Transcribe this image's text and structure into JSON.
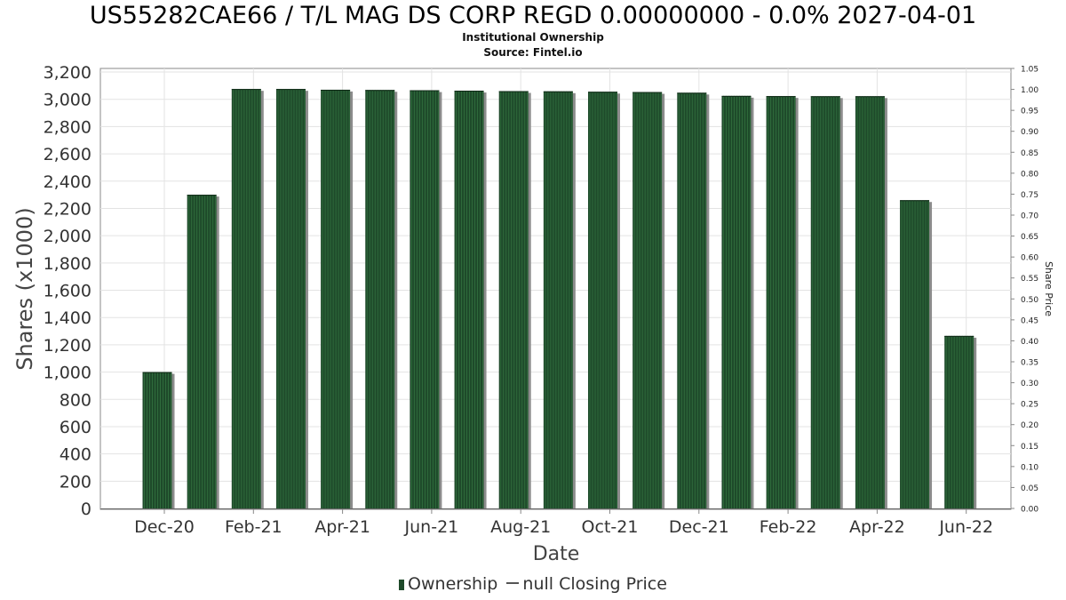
{
  "header": {
    "title": "US55282CAE66 / T/L MAG DS CORP REGD 0.00000000 - 0.0% 2027-04-01",
    "subtitle1": "Institutional Ownership",
    "subtitle2": "Source: Fintel.io"
  },
  "legend": {
    "items": [
      {
        "label": "Ownership",
        "color": "#1e4a2a",
        "kind": "bar"
      },
      {
        "label": "null Closing Price",
        "color": "#555555",
        "kind": "line"
      }
    ]
  },
  "colors": {
    "bar": "#1e4a2a",
    "bar_stripe": "#2f6b3c",
    "bar_shadow": "#8c8c8c",
    "grid": "#e3e3e3",
    "axis": "#888888"
  },
  "chart_data": {
    "type": "bar",
    "title": "US55282CAE66 / T/L MAG DS CORP REGD 0.00000000 - 0.0% 2027-04-01",
    "xlabel": "Date",
    "ylabel": "Shares (x1000)",
    "y2label": "Share Price",
    "ylim": [
      0,
      3200
    ],
    "y2lim": [
      0,
      1.05
    ],
    "yticks": [
      0,
      200,
      400,
      600,
      800,
      1000,
      1200,
      1400,
      1600,
      1800,
      2000,
      2200,
      2400,
      2600,
      2800,
      3000,
      3200
    ],
    "yticklabels": [
      "0",
      "200",
      "400",
      "600",
      "800",
      "1,000",
      "1,200",
      "1,400",
      "1,600",
      "1,800",
      "2,000",
      "2,200",
      "2,400",
      "2,600",
      "2,800",
      "3,000",
      "3,200"
    ],
    "y2ticks": [
      "0.00",
      "0.05",
      "0.10",
      "0.15",
      "0.20",
      "0.25",
      "0.30",
      "0.35",
      "0.40",
      "0.45",
      "0.50",
      "0.55",
      "0.60",
      "0.65",
      "0.70",
      "0.75",
      "0.80",
      "0.85",
      "0.90",
      "0.95",
      "1.00",
      "1.05"
    ],
    "xticklabels": [
      "Dec-20",
      "Feb-21",
      "Apr-21",
      "Jun-21",
      "Aug-21",
      "Oct-21",
      "Dec-21",
      "Feb-22",
      "Apr-22",
      "Jun-22"
    ],
    "grid": true,
    "legend_position": "bottom-center",
    "series": [
      {
        "name": "Ownership",
        "values": [
          1000,
          2300,
          3075,
          3075,
          3070,
          3068,
          3066,
          3063,
          3060,
          3058,
          3055,
          3053,
          3048,
          3025,
          3023,
          3022,
          3022,
          2260,
          1265
        ]
      }
    ]
  }
}
